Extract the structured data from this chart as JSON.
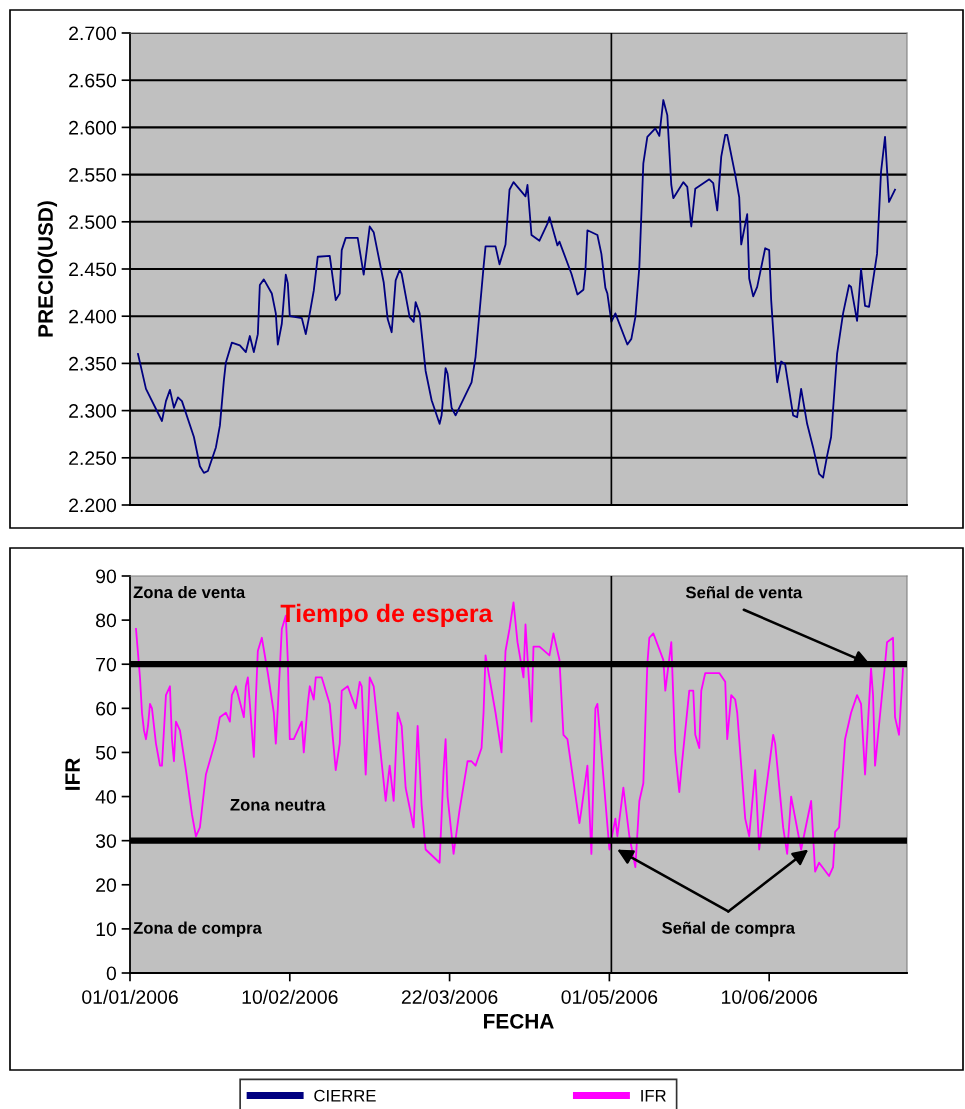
{
  "chart_data": [
    {
      "type": "line",
      "ylabel": "PRECIO(USD)",
      "xlim": [
        "2006-01-01",
        "2006-07-14T12:00"
      ],
      "ylim": [
        2.2,
        2.7
      ],
      "yticks": [
        {
          "value": 2.2,
          "label": "2.200"
        },
        {
          "value": 2.25,
          "label": "2.250"
        },
        {
          "value": 2.3,
          "label": "2.300"
        },
        {
          "value": 2.35,
          "label": "2.350"
        },
        {
          "value": 2.4,
          "label": "2.400"
        },
        {
          "value": 2.45,
          "label": "2.450"
        },
        {
          "value": 2.5,
          "label": "2.500"
        },
        {
          "value": 2.55,
          "label": "2.550"
        },
        {
          "value": 2.6,
          "label": "2.600"
        },
        {
          "value": 2.65,
          "label": "2.650"
        },
        {
          "value": 2.7,
          "label": "2.700"
        }
      ],
      "grid": "y",
      "tick_labels": "y",
      "legend": "bottom",
      "ref_lines": [
        {
          "axis": "x",
          "value": "2006-05-01T12:00",
          "color": "#000000"
        }
      ],
      "series": [
        {
          "name": "CIERRE",
          "color": "#000080",
          "x": [
            "2006-01-03",
            "2006-01-05",
            "2006-01-09",
            "2006-01-10",
            "2006-01-11",
            "2006-01-12",
            "2006-01-13",
            "2006-01-14",
            "2006-01-17",
            "2006-01-18T12:00",
            "2006-01-19T12:00",
            "2006-01-20T12:00",
            "2006-01-22T12:00",
            "2006-01-23T12:00",
            "2006-01-24T12:00",
            "2006-01-25",
            "2006-01-26T12:00",
            "2006-01-28T12:00",
            "2006-01-30",
            "2006-01-31",
            "2006-02-01",
            "2006-02-02",
            "2006-02-02T12:00",
            "2006-02-03T12:00",
            "2006-02-05T12:00",
            "2006-02-06T12:00",
            "2006-02-07",
            "2006-02-08",
            "2006-02-09",
            "2006-02-09T12:00",
            "2006-02-10",
            "2006-02-13",
            "2006-02-14",
            "2006-02-15",
            "2006-02-16",
            "2006-02-17",
            "2006-02-20",
            "2006-02-21T12:00",
            "2006-02-22T12:00",
            "2006-02-23",
            "2006-02-24",
            "2006-02-27",
            "2006-02-28T12:00",
            "2006-03-02",
            "2006-03-03",
            "2006-03-05T12:00",
            "2006-03-06T12:00",
            "2006-03-07T12:00",
            "2006-03-08T12:00",
            "2006-03-09T12:00",
            "2006-03-10",
            "2006-03-12",
            "2006-03-13",
            "2006-03-13T12:00",
            "2006-03-14T12:00",
            "2006-03-16",
            "2006-03-17T12:00",
            "2006-03-19T12:00",
            "2006-03-20",
            "2006-03-21",
            "2006-03-21T12:00",
            "2006-03-22T12:00",
            "2006-03-23T12:00",
            "2006-03-27T12:00",
            "2006-03-28T12:00",
            "2006-03-30T12:00",
            "2006-03-31",
            "2006-04-02T12:00",
            "2006-04-03T12:00",
            "2006-04-05",
            "2006-04-06",
            "2006-04-07",
            "2006-04-10",
            "2006-04-10T12:00",
            "2006-04-11T12:00",
            "2006-04-13T12:00",
            "2006-04-15T12:00",
            "2006-04-16",
            "2006-04-18",
            "2006-04-18T12:00",
            "2006-04-21T12:00",
            "2006-04-23",
            "2006-04-24T12:00",
            "2006-04-25",
            "2006-04-25T12:00",
            "2006-04-28",
            "2006-04-29",
            "2006-04-30",
            "2006-04-30T12:00",
            "2006-05-01T12:00",
            "2006-05-02T12:00",
            "2006-05-05T12:00",
            "2006-05-06T12:00",
            "2006-05-07T12:00",
            "2006-05-08T12:00",
            "2006-05-09T12:00",
            "2006-05-10T12:00",
            "2006-05-12T12:00",
            "2006-05-13T12:00",
            "2006-05-14T12:00",
            "2006-05-15T12:00",
            "2006-05-16T12:00",
            "2006-05-17",
            "2006-05-19T12:00",
            "2006-05-20T12:00",
            "2006-05-21T12:00",
            "2006-05-22T12:00",
            "2006-05-26",
            "2006-05-27",
            "2006-05-28",
            "2006-05-29",
            "2006-05-30",
            "2006-05-30T12:00",
            "2006-06-01T12:00",
            "2006-06-02T12:00",
            "2006-06-03",
            "2006-06-04T12:00",
            "2006-06-05",
            "2006-06-06",
            "2006-06-07",
            "2006-06-09",
            "2006-06-10",
            "2006-06-10T12:00",
            "2006-06-11T12:00",
            "2006-06-12",
            "2006-06-13",
            "2006-06-14",
            "2006-06-16",
            "2006-06-17",
            "2006-06-18",
            "2006-06-19T12:00",
            "2006-06-21",
            "2006-06-22T12:00",
            "2006-06-23T12:00",
            "2006-06-24T12:00",
            "2006-06-25T12:00",
            "2006-06-27",
            "2006-06-28T12:00",
            "2006-06-30",
            "2006-06-30T12:00",
            "2006-07-02",
            "2006-07-03",
            "2006-07-04",
            "2006-07-05",
            "2006-07-07",
            "2006-07-08",
            "2006-07-09",
            "2006-07-10",
            "2006-07-11T12:00"
          ],
          "values": [
            2.36,
            2.323,
            2.289,
            2.31,
            2.322,
            2.303,
            2.314,
            2.31,
            2.272,
            2.241,
            2.234,
            2.236,
            2.261,
            2.284,
            2.332,
            2.351,
            2.372,
            2.369,
            2.362,
            2.379,
            2.362,
            2.381,
            2.433,
            2.439,
            2.424,
            2.403,
            2.37,
            2.392,
            2.444,
            2.435,
            2.4,
            2.398,
            2.381,
            2.403,
            2.427,
            2.463,
            2.464,
            2.417,
            2.424,
            2.47,
            2.483,
            2.483,
            2.444,
            2.495,
            2.489,
            2.436,
            2.397,
            2.383,
            2.438,
            2.449,
            2.445,
            2.399,
            2.394,
            2.415,
            2.403,
            2.342,
            2.311,
            2.286,
            2.295,
            2.345,
            2.339,
            2.303,
            2.295,
            2.33,
            2.357,
            2.452,
            2.474,
            2.474,
            2.455,
            2.476,
            2.534,
            2.542,
            2.527,
            2.539,
            2.486,
            2.48,
            2.498,
            2.505,
            2.475,
            2.479,
            2.445,
            2.423,
            2.428,
            2.449,
            2.491,
            2.486,
            2.466,
            2.43,
            2.424,
            2.394,
            2.403,
            2.37,
            2.376,
            2.399,
            2.452,
            2.562,
            2.59,
            2.599,
            2.591,
            2.629,
            2.613,
            2.539,
            2.525,
            2.542,
            2.537,
            2.495,
            2.535,
            2.545,
            2.541,
            2.512,
            2.569,
            2.592,
            2.592,
            2.55,
            2.526,
            2.476,
            2.508,
            2.44,
            2.421,
            2.431,
            2.472,
            2.47,
            2.417,
            2.353,
            2.33,
            2.352,
            2.349,
            2.295,
            2.293,
            2.323,
            2.286,
            2.261,
            2.233,
            2.229,
            2.252,
            2.272,
            2.36,
            2.403,
            2.433,
            2.431,
            2.395,
            2.45,
            2.411,
            2.41,
            2.466,
            2.553,
            2.59,
            2.521,
            2.534
          ]
        }
      ]
    },
    {
      "type": "line",
      "ylabel": "IFR",
      "xlabel": "FECHA",
      "xlim": [
        "2006-01-01",
        "2006-07-14T12:00"
      ],
      "ylim": [
        0,
        90
      ],
      "yticks": [
        0,
        10,
        20,
        30,
        40,
        50,
        60,
        70,
        80,
        90
      ],
      "xticks": [
        {
          "value": "2006-01-01",
          "label": "01/01/2006"
        },
        {
          "value": "2006-02-10",
          "label": "10/02/2006"
        },
        {
          "value": "2006-03-22",
          "label": "22/03/2006"
        },
        {
          "value": "2006-05-01",
          "label": "01/05/2006"
        },
        {
          "value": "2006-06-10",
          "label": "10/06/2006"
        }
      ],
      "grid": false,
      "legend": "bottom",
      "ref_lines": [
        {
          "axis": "y",
          "value": 70,
          "color": "#000000"
        },
        {
          "axis": "y",
          "value": 30,
          "color": "#000000"
        },
        {
          "axis": "x",
          "value": "2006-05-01T12:00",
          "color": "#000000"
        }
      ],
      "annotations": [
        "Zona de venta",
        "Tiempo de espera",
        "Zona neutra",
        "Zona de compra",
        {
          "text": "Señal de venta",
          "x": "2006-07-05T06:00",
          "y": 70
        },
        "Señal de compra"
      ],
      "series": [
        {
          "name": "IFR",
          "color": "#ff00ff",
          "x": [
            "2006-01-02T12:00",
            "2006-01-03T12:00",
            "2006-01-04",
            "2006-01-04T12:00",
            "2006-01-05",
            "2006-01-05T12:00",
            "2006-01-06",
            "2006-01-06T12:00",
            "2006-01-07T12:00",
            "2006-01-08T12:00",
            "2006-01-09",
            "2006-01-10",
            "2006-01-11",
            "2006-01-11T12:00",
            "2006-01-12",
            "2006-01-12T12:00",
            "2006-01-13T12:00",
            "2006-01-15",
            "2006-01-16T12:00",
            "2006-01-17T12:00",
            "2006-01-18T12:00",
            "2006-01-20",
            "2006-01-22T12:00",
            "2006-01-23T12:00",
            "2006-01-25",
            "2006-01-26",
            "2006-01-26T12:00",
            "2006-01-27T12:00",
            "2006-01-29T12:00",
            "2006-01-30",
            "2006-01-30T12:00",
            "2006-01-31",
            "2006-02-01",
            "2006-02-01T12:00",
            "2006-02-02",
            "2006-02-03",
            "2006-02-04T12:00",
            "2006-02-06",
            "2006-02-06T12:00",
            "2006-02-07",
            "2006-02-08",
            "2006-02-09",
            "2006-02-09T12:00",
            "2006-02-10",
            "2006-02-11",
            "2006-02-13",
            "2006-02-13T12:00",
            "2006-02-14T12:00",
            "2006-02-15",
            "2006-02-16",
            "2006-02-16T12:00",
            "2006-02-18",
            "2006-02-20",
            "2006-02-21T12:00",
            "2006-02-22T12:00",
            "2006-02-23",
            "2006-02-24T12:00",
            "2006-02-26T12:00",
            "2006-02-27T12:00",
            "2006-02-28",
            "2006-03-01",
            "2006-03-02",
            "2006-03-03",
            "2006-03-06",
            "2006-03-07",
            "2006-03-08",
            "2006-03-09",
            "2006-03-10",
            "2006-03-11",
            "2006-03-13",
            "2006-03-14",
            "2006-03-15",
            "2006-03-16",
            "2006-03-19T12:00",
            "2006-03-20T12:00",
            "2006-03-21",
            "2006-03-21T12:00",
            "2006-03-23",
            "2006-03-24T12:00",
            "2006-03-26T12:00",
            "2006-03-27T12:00",
            "2006-03-28T12:00",
            "2006-03-30",
            "2006-03-30T12:00",
            "2006-03-31",
            "2006-04-02T12:00",
            "2006-04-04",
            "2006-04-05",
            "2006-04-06",
            "2006-04-07",
            "2006-04-08",
            "2006-04-09T12:00",
            "2006-04-10",
            "2006-04-11T12:00",
            "2006-04-12",
            "2006-04-13T12:00",
            "2006-04-16",
            "2006-04-17",
            "2006-04-18T12:00",
            "2006-04-19T12:00",
            "2006-04-20T12:00",
            "2006-04-23T12:00",
            "2006-04-24",
            "2006-04-25T12:00",
            "2006-04-26T12:00",
            "2006-04-27T12:00",
            "2006-04-28",
            "2006-05-01",
            "2006-05-02T12:00",
            "2006-05-03",
            "2006-05-04T12:00",
            "2006-05-06",
            "2006-05-07T12:00",
            "2006-05-08T12:00",
            "2006-05-09T12:00",
            "2006-05-10T12:00",
            "2006-05-11",
            "2006-05-12",
            "2006-05-14T12:00",
            "2006-05-15",
            "2006-05-16T12:00",
            "2006-05-17T12:00",
            "2006-05-18T12:00",
            "2006-05-19",
            "2006-05-21",
            "2006-05-22",
            "2006-05-22T12:00",
            "2006-05-23T12:00",
            "2006-05-24",
            "2006-05-25",
            "2006-05-28T12:00",
            "2006-05-30",
            "2006-05-30T12:00",
            "2006-05-31T12:00",
            "2006-06-01T12:00",
            "2006-06-02",
            "2006-06-04",
            "2006-06-05",
            "2006-06-06T12:00",
            "2006-06-07T12:00",
            "2006-06-09",
            "2006-06-11",
            "2006-06-11T12:00",
            "2006-06-13T12:00",
            "2006-06-14T12:00",
            "2006-06-15T12:00",
            "2006-06-18",
            "2006-06-20T12:00",
            "2006-06-21T12:00",
            "2006-06-22T12:00",
            "2006-06-25",
            "2006-06-26",
            "2006-06-26T12:00",
            "2006-06-27T12:00",
            "2006-06-29",
            "2006-06-30T12:00",
            "2006-07-02",
            "2006-07-03",
            "2006-07-04",
            "2006-07-05T12:00",
            "2006-07-06",
            "2006-07-06T12:00",
            "2006-07-09",
            "2006-07-09T12:00",
            "2006-07-11",
            "2006-07-11T12:00",
            "2006-07-12T12:00",
            "2006-07-13T12:00"
          ],
          "values": [
            78,
            67,
            59,
            55,
            53,
            56,
            61,
            60,
            52,
            47,
            47,
            63,
            65,
            53,
            48,
            57,
            55,
            46,
            36,
            31,
            33,
            45,
            53,
            58,
            59,
            57,
            63,
            65,
            58,
            65,
            67,
            61,
            49,
            62,
            73,
            76,
            68,
            59,
            52,
            60,
            78,
            81,
            71,
            53,
            53,
            57,
            50,
            61,
            65,
            62,
            67,
            67,
            61,
            46,
            52,
            64,
            65,
            60,
            66,
            65,
            45,
            67,
            65,
            39,
            47,
            39,
            59,
            56,
            42,
            33,
            56,
            38,
            28,
            25,
            46,
            53,
            40,
            27,
            37,
            48,
            48,
            47,
            51,
            59,
            72,
            59,
            50,
            73,
            78,
            84,
            75,
            67,
            79,
            57,
            74,
            74,
            72,
            77,
            71,
            54,
            53,
            34,
            37,
            47,
            27,
            60,
            61,
            28,
            35,
            31,
            42,
            31,
            24,
            39,
            43,
            70,
            76,
            77,
            71,
            64,
            75,
            50,
            41,
            46,
            64,
            64,
            54,
            51,
            64,
            68,
            68,
            66,
            53,
            63,
            62,
            59,
            35,
            31,
            46,
            28,
            40,
            54,
            52,
            33,
            27,
            40,
            28,
            39,
            23,
            25,
            22,
            24,
            32,
            33,
            53,
            59,
            63,
            61,
            45,
            69,
            63,
            47,
            70,
            75,
            76,
            58,
            54,
            69
          ]
        }
      ]
    }
  ]
}
